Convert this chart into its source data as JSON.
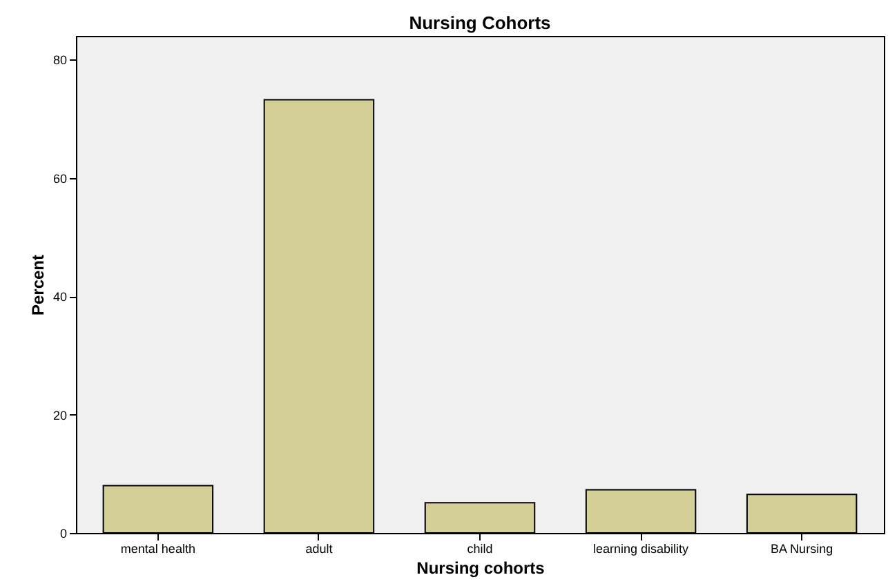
{
  "chart_data": {
    "type": "bar",
    "title": "Nursing Cohorts",
    "xlabel": "Nursing cohorts",
    "ylabel": "Percent",
    "categories": [
      "mental health",
      "adult",
      "child",
      "learning disability",
      "BA Nursing"
    ],
    "values": [
      8.0,
      73.2,
      5.1,
      7.3,
      6.5
    ],
    "color": "#d4cf96",
    "ylim": [
      0,
      84
    ],
    "yticks": [
      0,
      20,
      40,
      60,
      80
    ],
    "grid": false
  }
}
